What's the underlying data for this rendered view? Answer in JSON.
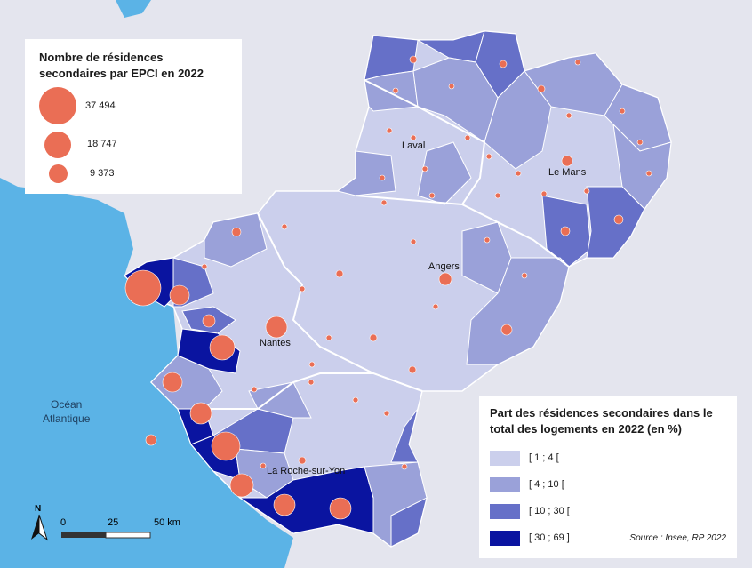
{
  "circle_legend": {
    "title": "Nombre de résidences secondaires par EPCI en 2022",
    "items": [
      {
        "label": "37 494",
        "value": 37494
      },
      {
        "label": "18 747",
        "value": 18747
      },
      {
        "label": "9 373",
        "value": 9373
      }
    ]
  },
  "share_legend": {
    "title": "Part des résidences secondaires dans le total des logements en 2022 (en %)",
    "classes": [
      {
        "label": "[ 1 ; 4 [",
        "color": "#cbcfec"
      },
      {
        "label": "[ 4 ; 10 [",
        "color": "#9aa1d9"
      },
      {
        "label": "[ 10 ; 30 [",
        "color": "#6670c8"
      },
      {
        "label": "[ 30 ; 69 ]",
        "color": "#0a14a0"
      }
    ]
  },
  "source": "Source : Insee, RP 2022",
  "cities": [
    "Laval",
    "Le Mans",
    "Angers",
    "Nantes",
    "La Roche-sur-Yon"
  ],
  "ocean_label": [
    "Océan",
    "Atlantique"
  ],
  "scale": {
    "north": "N",
    "ticks": [
      "0",
      "25",
      "50 km"
    ]
  },
  "colors": {
    "circle": "#ea6e55",
    "sea": "#5bb3e6",
    "land": "#e4e5ee"
  }
}
